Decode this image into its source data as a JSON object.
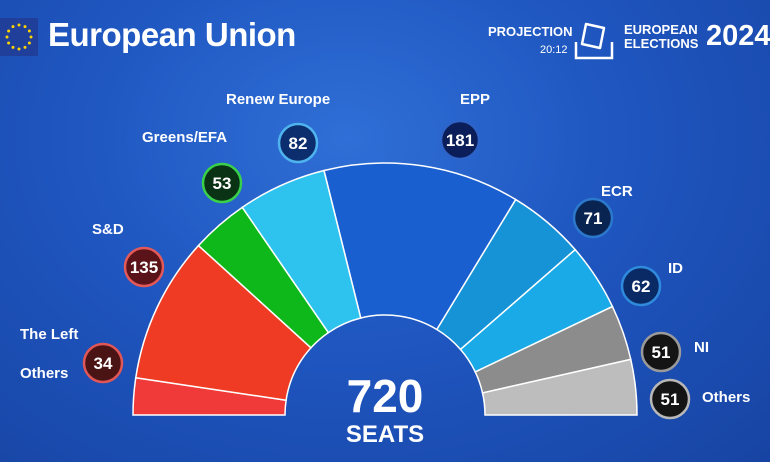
{
  "header": {
    "title": "European Union",
    "projection_label": "PROJECTION",
    "time": "20:12",
    "election_line1": "EUROPEAN",
    "election_line2": "ELECTIONS",
    "year": "2024"
  },
  "total": {
    "value": "720",
    "label": "SEATS"
  },
  "colors": {
    "background": "#1f56c0",
    "text": "#ffffff"
  },
  "chart_data": {
    "type": "parliament-semicircle",
    "title": "",
    "total_seats": 720,
    "series": [
      {
        "name": "The Left",
        "value": 34,
        "color": "#f03a3a",
        "badge_bg": "#4a1414",
        "badge_ring": "#e05555",
        "show_value": true
      },
      {
        "name": "S&D",
        "value": 135,
        "color": "#ef3b24",
        "badge_bg": "#5a1318",
        "badge_ring": "#e35858",
        "show_value": true
      },
      {
        "name": "Greens/EFA",
        "value": 53,
        "color": "#0fb81a",
        "badge_bg": "#0a3315",
        "badge_ring": "#39d04a",
        "show_value": true
      },
      {
        "name": "Renew Europe",
        "value": 82,
        "color": "#2ec3ee",
        "badge_bg": "#0c2d6e",
        "badge_ring": "#4fb4ee",
        "show_value": true
      },
      {
        "name": "EPP",
        "value": 181,
        "color": "#1a5fcf",
        "badge_bg": "#0b1e5a",
        "badge_ring": "#2e63c8",
        "show_value": true
      },
      {
        "name": "ECR",
        "value": 71,
        "color": "#1693d6",
        "badge_bg": "#0a2452",
        "badge_ring": "#2b78cc",
        "show_value": true
      },
      {
        "name": "ID",
        "value": 62,
        "color": "#1aaae8",
        "badge_bg": "#0a2a66",
        "badge_ring": "#2f8adc",
        "show_value": true
      },
      {
        "name": "NI",
        "value": 51,
        "color": "#8c8c8c",
        "badge_bg": "#141414",
        "badge_ring": "#9a9a9a",
        "show_value": true
      },
      {
        "name": "Others",
        "value": 51,
        "color": "#bdbdbd",
        "badge_bg": "#141414",
        "badge_ring": "#b8b8b8",
        "show_value": true
      }
    ]
  }
}
